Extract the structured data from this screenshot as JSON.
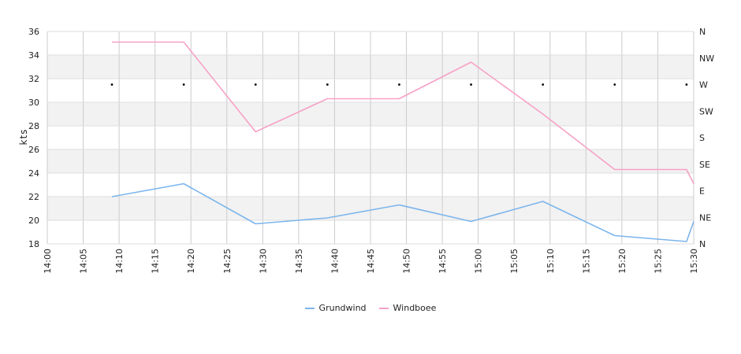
{
  "chart_data": {
    "type": "line",
    "ylabel": "kts",
    "ylim": [
      18,
      36
    ],
    "y_ticks": [
      18,
      20,
      22,
      24,
      26,
      28,
      30,
      32,
      34,
      36
    ],
    "x_ticks": [
      "14:00",
      "14:05",
      "14:10",
      "14:15",
      "14:20",
      "14:25",
      "14:30",
      "14:35",
      "14:40",
      "14:45",
      "14:50",
      "14:55",
      "15:00",
      "15:05",
      "15:10",
      "15:15",
      "15:20",
      "15:25",
      "15:30"
    ],
    "x_range": [
      "14:00",
      "15:30"
    ],
    "right_axis_labels": [
      "N",
      "NE",
      "E",
      "SE",
      "S",
      "SW",
      "W",
      "NW",
      "N"
    ],
    "grid": true,
    "legend_position": "bottom-center",
    "direction_markers": {
      "x": [
        "14:09",
        "14:19",
        "14:29",
        "14:39",
        "14:49",
        "14:59",
        "15:09",
        "15:19",
        "15:29"
      ],
      "direction": [
        "W",
        "W",
        "W",
        "W",
        "W",
        "W",
        "W",
        "W",
        "W"
      ]
    },
    "series": [
      {
        "name": "Grundwind",
        "color": "#7cb5ec",
        "x": [
          "14:09",
          "14:19",
          "14:29",
          "14:39",
          "14:49",
          "14:59",
          "15:09",
          "15:19",
          "15:29",
          "15:30"
        ],
        "values": [
          22.0,
          23.1,
          19.7,
          20.2,
          21.3,
          19.9,
          21.6,
          18.7,
          18.2,
          19.9
        ]
      },
      {
        "name": "Windboee",
        "color": "#f7a1c6",
        "x": [
          "14:09",
          "14:19",
          "14:29",
          "14:39",
          "14:49",
          "14:59",
          "15:09",
          "15:19",
          "15:29",
          "15:30"
        ],
        "values": [
          35.1,
          35.1,
          27.5,
          30.3,
          30.3,
          33.4,
          29.0,
          24.3,
          24.3,
          23.1
        ]
      }
    ]
  }
}
